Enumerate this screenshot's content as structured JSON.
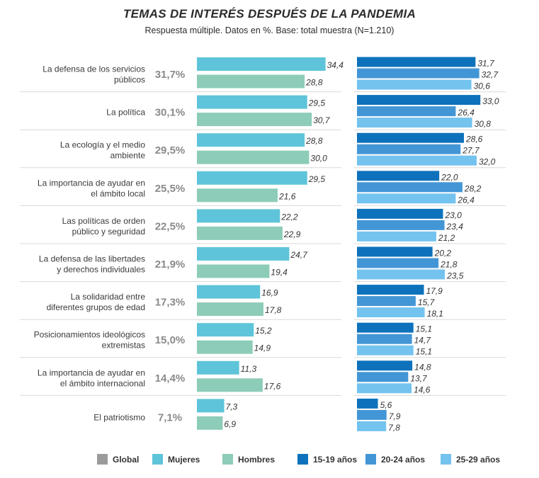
{
  "title": "TEMAS DE INTERÉS DESPUÉS DE LA PANDEMIA",
  "subtitle": "Respuesta múltiple. Datos en %. Base: total muestra (N=1.210)",
  "chart_data": {
    "type": "bar",
    "orientation": "horizontal",
    "categories": [
      [
        "La defensa de los servicios",
        "públicos"
      ],
      [
        "La política"
      ],
      [
        "La ecología y el medio",
        "ambiente"
      ],
      [
        "La importancia de ayudar en",
        "el ámbito local"
      ],
      [
        "Las políticas de orden",
        "público y seguridad"
      ],
      [
        "La defensa de las libertades",
        "y derechos individuales"
      ],
      [
        "La solidaridad entre",
        "diferentes grupos de edad"
      ],
      [
        "Posicionamientos ideológicos",
        "extremistas"
      ],
      [
        "La importancia de ayudar en",
        "el ámbito internacional"
      ],
      [
        "El patriotismo"
      ]
    ],
    "global_labels": [
      "31,7%",
      "30,1%",
      "29,5%",
      "25,5%",
      "22,5%",
      "21,9%",
      "17,3%",
      "15,0%",
      "14,4%",
      "7,1%"
    ],
    "series": [
      {
        "name": "Global",
        "color": "#9b9b9b",
        "values": [
          31.7,
          30.1,
          29.5,
          25.5,
          22.5,
          21.9,
          17.3,
          15.0,
          14.4,
          7.1
        ]
      },
      {
        "name": "Mujeres",
        "color": "#5ec4d9",
        "values": [
          34.4,
          29.5,
          28.8,
          29.5,
          22.2,
          24.7,
          16.9,
          15.2,
          11.3,
          7.3
        ]
      },
      {
        "name": "Hombres",
        "color": "#8dccb8",
        "values": [
          28.8,
          30.7,
          30.0,
          21.6,
          22.9,
          19.4,
          17.8,
          14.9,
          17.6,
          6.9
        ]
      },
      {
        "name": "15-19 años",
        "color": "#0d72bb",
        "values": [
          31.7,
          33.0,
          28.6,
          22.0,
          23.0,
          20.2,
          17.9,
          15.1,
          14.8,
          5.6
        ]
      },
      {
        "name": "20-24 años",
        "color": "#4396d6",
        "values": [
          32.7,
          26.4,
          27.7,
          28.2,
          23.4,
          21.8,
          15.7,
          14.7,
          13.7,
          7.9
        ]
      },
      {
        "name": "25-29 años",
        "color": "#74c3ef",
        "values": [
          30.6,
          30.8,
          32.0,
          26.4,
          21.2,
          23.5,
          18.1,
          15.1,
          14.6,
          7.8
        ]
      }
    ],
    "value_labels": {
      "Mujeres": [
        "34,4",
        "29,5",
        "28,8",
        "29,5",
        "22,2",
        "24,7",
        "16,9",
        "15,2",
        "11,3",
        "7,3"
      ],
      "Hombres": [
        "28,8",
        "30,7",
        "30,0",
        "21,6",
        "22,9",
        "19,4",
        "17,8",
        "14,9",
        "17,6",
        "6,9"
      ],
      "15-19 años": [
        "31,7",
        "33,0",
        "28,6",
        "22,0",
        "23,0",
        "20,2",
        "17,9",
        "15,1",
        "14,8",
        "5,6"
      ],
      "20-24 años": [
        "32,7",
        "26,4",
        "27,7",
        "28,2",
        "23,4",
        "21,8",
        "15,7",
        "14,7",
        "13,7",
        "7,9"
      ],
      "25-29 años": [
        "30,6",
        "30,8",
        "32,0",
        "26,4",
        "21,2",
        "23,5",
        "18,1",
        "15,1",
        "14,6",
        "7,8"
      ]
    },
    "legend_position": "bottom"
  }
}
